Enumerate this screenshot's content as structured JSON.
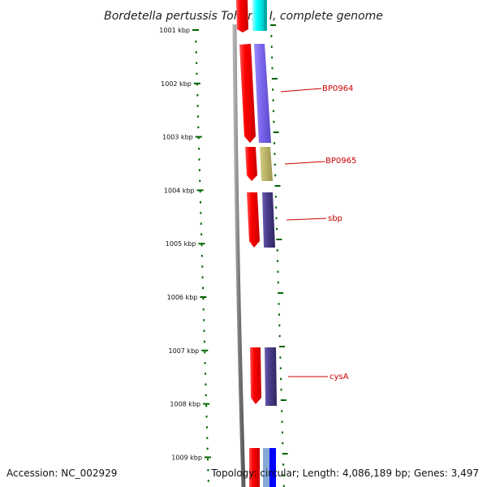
{
  "title": "Bordetella pertussis Tohama I, complete genome",
  "ticks": [
    "1001 kbp",
    "1002 kbp",
    "1003 kbp",
    "1004 kbp",
    "1005 kbp",
    "1006 kbp",
    "1007 kbp",
    "1008 kbp",
    "1009 kbp"
  ],
  "genes": [
    {
      "name": "BP0964",
      "start_kbp": 1001.26,
      "end_kbp": 1003.03,
      "strand_plus_color": "#7b68ee",
      "strand_minus_color": "#ff0000"
    },
    {
      "name": "BP0965",
      "start_kbp": 1003.18,
      "end_kbp": 1003.85,
      "strand_plus_color": "#bdb76b",
      "strand_minus_color": "#ff0000"
    },
    {
      "name": "sbp",
      "start_kbp": 1004.01,
      "end_kbp": 1005.07,
      "strand_plus_color": "#483d8b",
      "strand_minus_color": "#ff0000"
    },
    {
      "name": "cysA",
      "start_kbp": 1006.98,
      "end_kbp": 1008.03,
      "strand_plus_color": "#483d8b",
      "strand_minus_color": "#ff0000"
    }
  ],
  "colors": {
    "tick": "#006400",
    "backbone": "#808080",
    "label": "#cc0000",
    "label_line": "#cc0000",
    "cyan_gene": "#00ffff",
    "blue_gene": "#0000ff",
    "light_blue_gene": "#87a9d6"
  },
  "footer": {
    "accession": "Accession: NC_002929",
    "topology": "Topology: circular; Length: 4,086,189 bp; Genes: 3,497"
  }
}
